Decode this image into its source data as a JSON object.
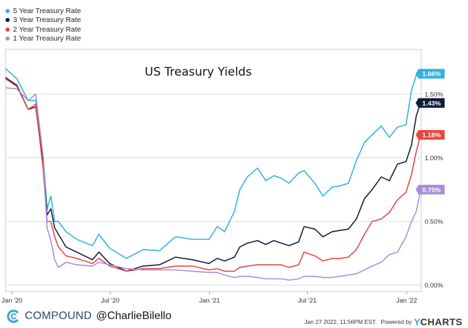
{
  "chart_data": {
    "type": "line",
    "title": "US Treasury Yields",
    "ylim": [
      -0.05,
      1.85
    ],
    "y_ticks": [
      0.0,
      0.5,
      1.0,
      1.5
    ],
    "y_tick_labels": [
      "0.00%",
      "0.50%",
      "1.00%",
      "1.50%"
    ],
    "x_range": [
      "2019-12-20",
      "2022-01-28"
    ],
    "x_ticks": [
      {
        "date": "2020-01-01",
        "label": "Jan '20"
      },
      {
        "date": "2020-07-01",
        "label": "Jul '20"
      },
      {
        "date": "2021-01-01",
        "label": "Jan '21"
      },
      {
        "date": "2021-07-01",
        "label": "Jul '21"
      },
      {
        "date": "2022-01-01",
        "label": "Jan '22"
      }
    ],
    "series": [
      {
        "name": "5 Year Treasury Rate",
        "color": "#2eb3e0",
        "last_label": "1.66%",
        "points": [
          [
            "2019-12-20",
            1.7
          ],
          [
            "2020-01-10",
            1.62
          ],
          [
            "2020-01-31",
            1.45
          ],
          [
            "2020-02-14",
            1.45
          ],
          [
            "2020-02-28",
            1.0
          ],
          [
            "2020-03-06",
            0.6
          ],
          [
            "2020-03-13",
            0.7
          ],
          [
            "2020-03-20",
            0.5
          ],
          [
            "2020-03-27",
            0.5
          ],
          [
            "2020-04-10",
            0.42
          ],
          [
            "2020-04-30",
            0.36
          ],
          [
            "2020-05-29",
            0.31
          ],
          [
            "2020-06-10",
            0.4
          ],
          [
            "2020-06-30",
            0.29
          ],
          [
            "2020-07-31",
            0.21
          ],
          [
            "2020-08-31",
            0.28
          ],
          [
            "2020-09-30",
            0.27
          ],
          [
            "2020-10-30",
            0.38
          ],
          [
            "2020-11-30",
            0.36
          ],
          [
            "2020-12-31",
            0.36
          ],
          [
            "2021-01-15",
            0.46
          ],
          [
            "2021-01-29",
            0.42
          ],
          [
            "2021-02-16",
            0.58
          ],
          [
            "2021-02-26",
            0.75
          ],
          [
            "2021-03-12",
            0.85
          ],
          [
            "2021-03-31",
            0.92
          ],
          [
            "2021-04-15",
            0.82
          ],
          [
            "2021-04-30",
            0.86
          ],
          [
            "2021-05-14",
            0.84
          ],
          [
            "2021-05-28",
            0.8
          ],
          [
            "2021-06-15",
            0.88
          ],
          [
            "2021-06-25",
            0.9
          ],
          [
            "2021-07-15",
            0.8
          ],
          [
            "2021-07-30",
            0.7
          ],
          [
            "2021-08-16",
            0.77
          ],
          [
            "2021-08-31",
            0.78
          ],
          [
            "2021-09-15",
            0.8
          ],
          [
            "2021-09-30",
            0.98
          ],
          [
            "2021-10-15",
            1.12
          ],
          [
            "2021-10-29",
            1.18
          ],
          [
            "2021-11-15",
            1.25
          ],
          [
            "2021-11-30",
            1.16
          ],
          [
            "2021-12-15",
            1.24
          ],
          [
            "2021-12-31",
            1.26
          ],
          [
            "2022-01-10",
            1.53
          ],
          [
            "2022-01-19",
            1.65
          ],
          [
            "2022-01-27",
            1.66
          ]
        ]
      },
      {
        "name": "3 Year Treasury Rate",
        "color": "#0d1e3d",
        "last_label": "1.43%",
        "points": [
          [
            "2019-12-20",
            1.63
          ],
          [
            "2020-01-10",
            1.57
          ],
          [
            "2020-01-31",
            1.38
          ],
          [
            "2020-02-14",
            1.4
          ],
          [
            "2020-02-28",
            0.95
          ],
          [
            "2020-03-06",
            0.55
          ],
          [
            "2020-03-13",
            0.6
          ],
          [
            "2020-03-20",
            0.45
          ],
          [
            "2020-03-27",
            0.4
          ],
          [
            "2020-04-10",
            0.3
          ],
          [
            "2020-04-30",
            0.26
          ],
          [
            "2020-05-29",
            0.2
          ],
          [
            "2020-06-10",
            0.26
          ],
          [
            "2020-06-30",
            0.17
          ],
          [
            "2020-07-31",
            0.11
          ],
          [
            "2020-08-31",
            0.15
          ],
          [
            "2020-09-30",
            0.16
          ],
          [
            "2020-10-30",
            0.22
          ],
          [
            "2020-11-30",
            0.2
          ],
          [
            "2020-12-31",
            0.17
          ],
          [
            "2021-01-15",
            0.21
          ],
          [
            "2021-01-29",
            0.19
          ],
          [
            "2021-02-16",
            0.22
          ],
          [
            "2021-02-26",
            0.3
          ],
          [
            "2021-03-12",
            0.33
          ],
          [
            "2021-03-31",
            0.35
          ],
          [
            "2021-04-15",
            0.32
          ],
          [
            "2021-04-30",
            0.35
          ],
          [
            "2021-05-14",
            0.33
          ],
          [
            "2021-05-28",
            0.31
          ],
          [
            "2021-06-15",
            0.34
          ],
          [
            "2021-06-25",
            0.46
          ],
          [
            "2021-07-15",
            0.44
          ],
          [
            "2021-07-30",
            0.38
          ],
          [
            "2021-08-16",
            0.42
          ],
          [
            "2021-08-31",
            0.43
          ],
          [
            "2021-09-15",
            0.44
          ],
          [
            "2021-09-30",
            0.52
          ],
          [
            "2021-10-15",
            0.68
          ],
          [
            "2021-10-29",
            0.75
          ],
          [
            "2021-11-15",
            0.85
          ],
          [
            "2021-11-30",
            0.82
          ],
          [
            "2021-12-15",
            0.95
          ],
          [
            "2021-12-31",
            0.97
          ],
          [
            "2022-01-10",
            1.1
          ],
          [
            "2022-01-19",
            1.33
          ],
          [
            "2022-01-27",
            1.43
          ]
        ]
      },
      {
        "name": "2 Year Treasury Rate",
        "color": "#e8463f",
        "last_label": "1.18%",
        "points": [
          [
            "2019-12-20",
            1.62
          ],
          [
            "2020-01-10",
            1.56
          ],
          [
            "2020-01-31",
            1.38
          ],
          [
            "2020-02-14",
            1.42
          ],
          [
            "2020-02-28",
            0.9
          ],
          [
            "2020-03-06",
            0.5
          ],
          [
            "2020-03-13",
            0.5
          ],
          [
            "2020-03-20",
            0.38
          ],
          [
            "2020-03-27",
            0.3
          ],
          [
            "2020-04-10",
            0.23
          ],
          [
            "2020-04-30",
            0.21
          ],
          [
            "2020-05-29",
            0.17
          ],
          [
            "2020-06-10",
            0.21
          ],
          [
            "2020-06-30",
            0.15
          ],
          [
            "2020-07-31",
            0.11
          ],
          [
            "2020-08-31",
            0.13
          ],
          [
            "2020-09-30",
            0.13
          ],
          [
            "2020-10-30",
            0.15
          ],
          [
            "2020-11-30",
            0.15
          ],
          [
            "2020-12-31",
            0.12
          ],
          [
            "2021-01-15",
            0.13
          ],
          [
            "2021-01-29",
            0.11
          ],
          [
            "2021-02-16",
            0.11
          ],
          [
            "2021-02-26",
            0.14
          ],
          [
            "2021-03-12",
            0.15
          ],
          [
            "2021-03-31",
            0.16
          ],
          [
            "2021-04-15",
            0.16
          ],
          [
            "2021-04-30",
            0.16
          ],
          [
            "2021-05-14",
            0.16
          ],
          [
            "2021-05-28",
            0.14
          ],
          [
            "2021-06-15",
            0.16
          ],
          [
            "2021-06-25",
            0.26
          ],
          [
            "2021-07-15",
            0.23
          ],
          [
            "2021-07-30",
            0.19
          ],
          [
            "2021-08-16",
            0.21
          ],
          [
            "2021-08-31",
            0.21
          ],
          [
            "2021-09-15",
            0.22
          ],
          [
            "2021-09-30",
            0.28
          ],
          [
            "2021-10-15",
            0.4
          ],
          [
            "2021-10-29",
            0.5
          ],
          [
            "2021-11-15",
            0.52
          ],
          [
            "2021-11-30",
            0.57
          ],
          [
            "2021-12-15",
            0.67
          ],
          [
            "2021-12-31",
            0.73
          ],
          [
            "2022-01-10",
            0.87
          ],
          [
            "2022-01-19",
            1.05
          ],
          [
            "2022-01-27",
            1.18
          ]
        ]
      },
      {
        "name": "1 Year Treasury Rate",
        "color": "#a78de0",
        "last_label": "0.75%",
        "points": [
          [
            "2019-12-20",
            1.55
          ],
          [
            "2020-01-10",
            1.54
          ],
          [
            "2020-01-31",
            1.45
          ],
          [
            "2020-02-14",
            1.5
          ],
          [
            "2020-02-28",
            1.0
          ],
          [
            "2020-03-06",
            0.45
          ],
          [
            "2020-03-13",
            0.35
          ],
          [
            "2020-03-20",
            0.2
          ],
          [
            "2020-03-27",
            0.14
          ],
          [
            "2020-04-10",
            0.18
          ],
          [
            "2020-04-30",
            0.16
          ],
          [
            "2020-05-29",
            0.15
          ],
          [
            "2020-06-10",
            0.18
          ],
          [
            "2020-06-30",
            0.16
          ],
          [
            "2020-07-31",
            0.13
          ],
          [
            "2020-08-31",
            0.12
          ],
          [
            "2020-09-30",
            0.12
          ],
          [
            "2020-10-30",
            0.12
          ],
          [
            "2020-11-30",
            0.11
          ],
          [
            "2020-12-31",
            0.1
          ],
          [
            "2021-01-15",
            0.1
          ],
          [
            "2021-01-29",
            0.08
          ],
          [
            "2021-02-16",
            0.06
          ],
          [
            "2021-02-26",
            0.07
          ],
          [
            "2021-03-12",
            0.07
          ],
          [
            "2021-03-31",
            0.06
          ],
          [
            "2021-04-15",
            0.05
          ],
          [
            "2021-04-30",
            0.05
          ],
          [
            "2021-05-14",
            0.05
          ],
          [
            "2021-05-28",
            0.04
          ],
          [
            "2021-06-15",
            0.05
          ],
          [
            "2021-06-25",
            0.07
          ],
          [
            "2021-07-15",
            0.07
          ],
          [
            "2021-07-30",
            0.06
          ],
          [
            "2021-08-16",
            0.06
          ],
          [
            "2021-08-31",
            0.07
          ],
          [
            "2021-09-15",
            0.08
          ],
          [
            "2021-09-30",
            0.09
          ],
          [
            "2021-10-15",
            0.12
          ],
          [
            "2021-10-29",
            0.15
          ],
          [
            "2021-11-15",
            0.18
          ],
          [
            "2021-11-30",
            0.24
          ],
          [
            "2021-12-15",
            0.26
          ],
          [
            "2021-12-31",
            0.38
          ],
          [
            "2022-01-10",
            0.5
          ],
          [
            "2022-01-19",
            0.58
          ],
          [
            "2022-01-27",
            0.75
          ]
        ]
      }
    ]
  },
  "footer": {
    "brand": "COMPOUND",
    "handle": "@CharlieBilello",
    "timestamp": "Jan 27 2022, 11:56PM EST.",
    "powered_by": "Powered by",
    "ycharts_y": "Y",
    "ycharts_rest": "CHARTS",
    "logo_icon": "compound-c-icon"
  }
}
